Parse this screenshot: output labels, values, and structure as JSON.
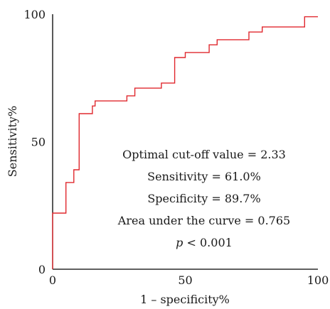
{
  "chart_data": {
    "type": "line",
    "title": "",
    "xlabel": "1 – specificity%",
    "ylabel": "Sensitivity%",
    "xlim": [
      0,
      100
    ],
    "ylim": [
      0,
      100
    ],
    "xticks": [
      "0",
      "50",
      "100"
    ],
    "yticks": [
      "0",
      "50",
      "100"
    ],
    "grid": false,
    "legend": "none",
    "series": [
      {
        "color": "#e0282e",
        "points": [
          [
            0,
            0
          ],
          [
            0,
            22
          ],
          [
            5,
            22
          ],
          [
            5,
            34
          ],
          [
            8,
            34
          ],
          [
            8,
            39
          ],
          [
            10,
            39
          ],
          [
            10,
            61
          ],
          [
            15,
            61
          ],
          [
            15,
            64
          ],
          [
            16,
            64
          ],
          [
            16,
            66
          ],
          [
            28,
            66
          ],
          [
            28,
            68
          ],
          [
            31,
            68
          ],
          [
            31,
            71
          ],
          [
            41,
            71
          ],
          [
            41,
            73
          ],
          [
            46,
            73
          ],
          [
            46,
            83
          ],
          [
            50,
            83
          ],
          [
            50,
            85
          ],
          [
            59,
            85
          ],
          [
            59,
            88
          ],
          [
            62,
            88
          ],
          [
            62,
            90
          ],
          [
            74,
            90
          ],
          [
            74,
            93
          ],
          [
            79,
            93
          ],
          [
            79,
            95
          ],
          [
            95,
            95
          ],
          [
            95,
            99
          ],
          [
            100,
            99
          ]
        ]
      }
    ],
    "annotations": [
      "Optimal cut-off value = 2.33",
      "Sensitivity = 61.0%",
      "Specificity = 89.7%",
      "Area under the curve = 0.765"
    ],
    "p_value": {
      "symbol": "p",
      "text": " < 0.001"
    }
  }
}
